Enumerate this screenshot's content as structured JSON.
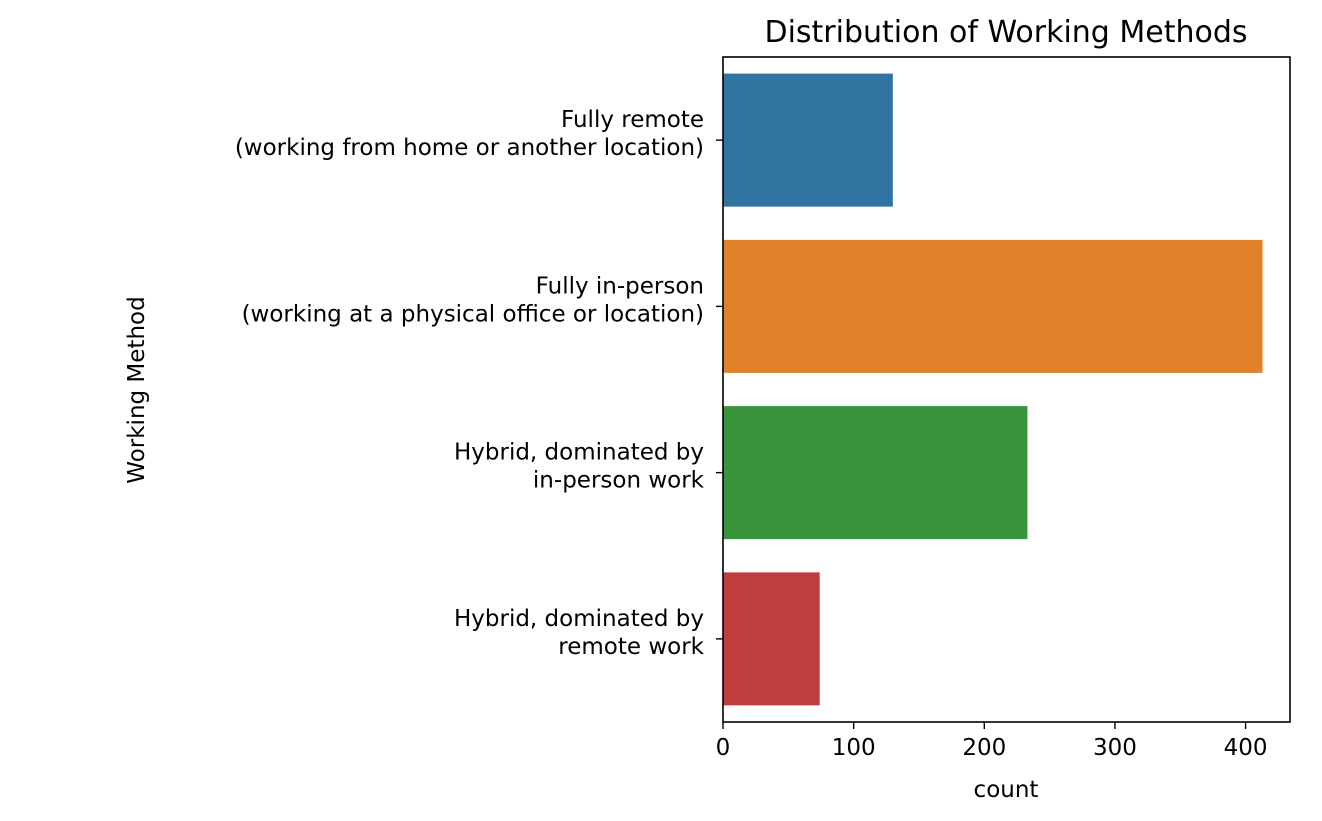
{
  "chart_data": {
    "type": "bar",
    "orientation": "horizontal",
    "title": "Distribution of Working Methods",
    "xlabel": "count",
    "ylabel": "Working Method",
    "xlim": [
      0,
      434
    ],
    "xticks": [
      0,
      100,
      200,
      300,
      400
    ],
    "grid": false,
    "categories": [
      [
        "Fully remote",
        "(working from home or another location)"
      ],
      [
        "Fully in-person",
        "(working at a physical office or location)"
      ],
      [
        "Hybrid, dominated by",
        "in-person work"
      ],
      [
        "Hybrid, dominated by",
        "remote work"
      ]
    ],
    "values": [
      130,
      413,
      233,
      74
    ],
    "colors": [
      "#3274a1",
      "#e1812c",
      "#3a923a",
      "#c03d3e"
    ]
  }
}
